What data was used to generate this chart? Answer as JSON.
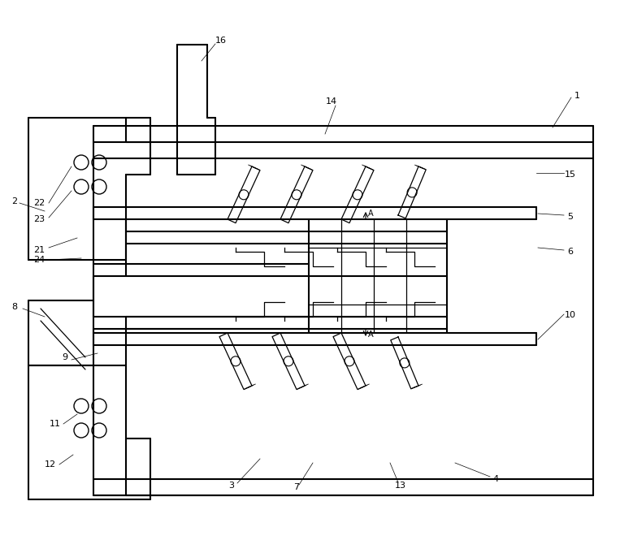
{
  "bg_color": "#ffffff",
  "line_color": "#000000",
  "lw": 1.5,
  "tlw": 0.9
}
